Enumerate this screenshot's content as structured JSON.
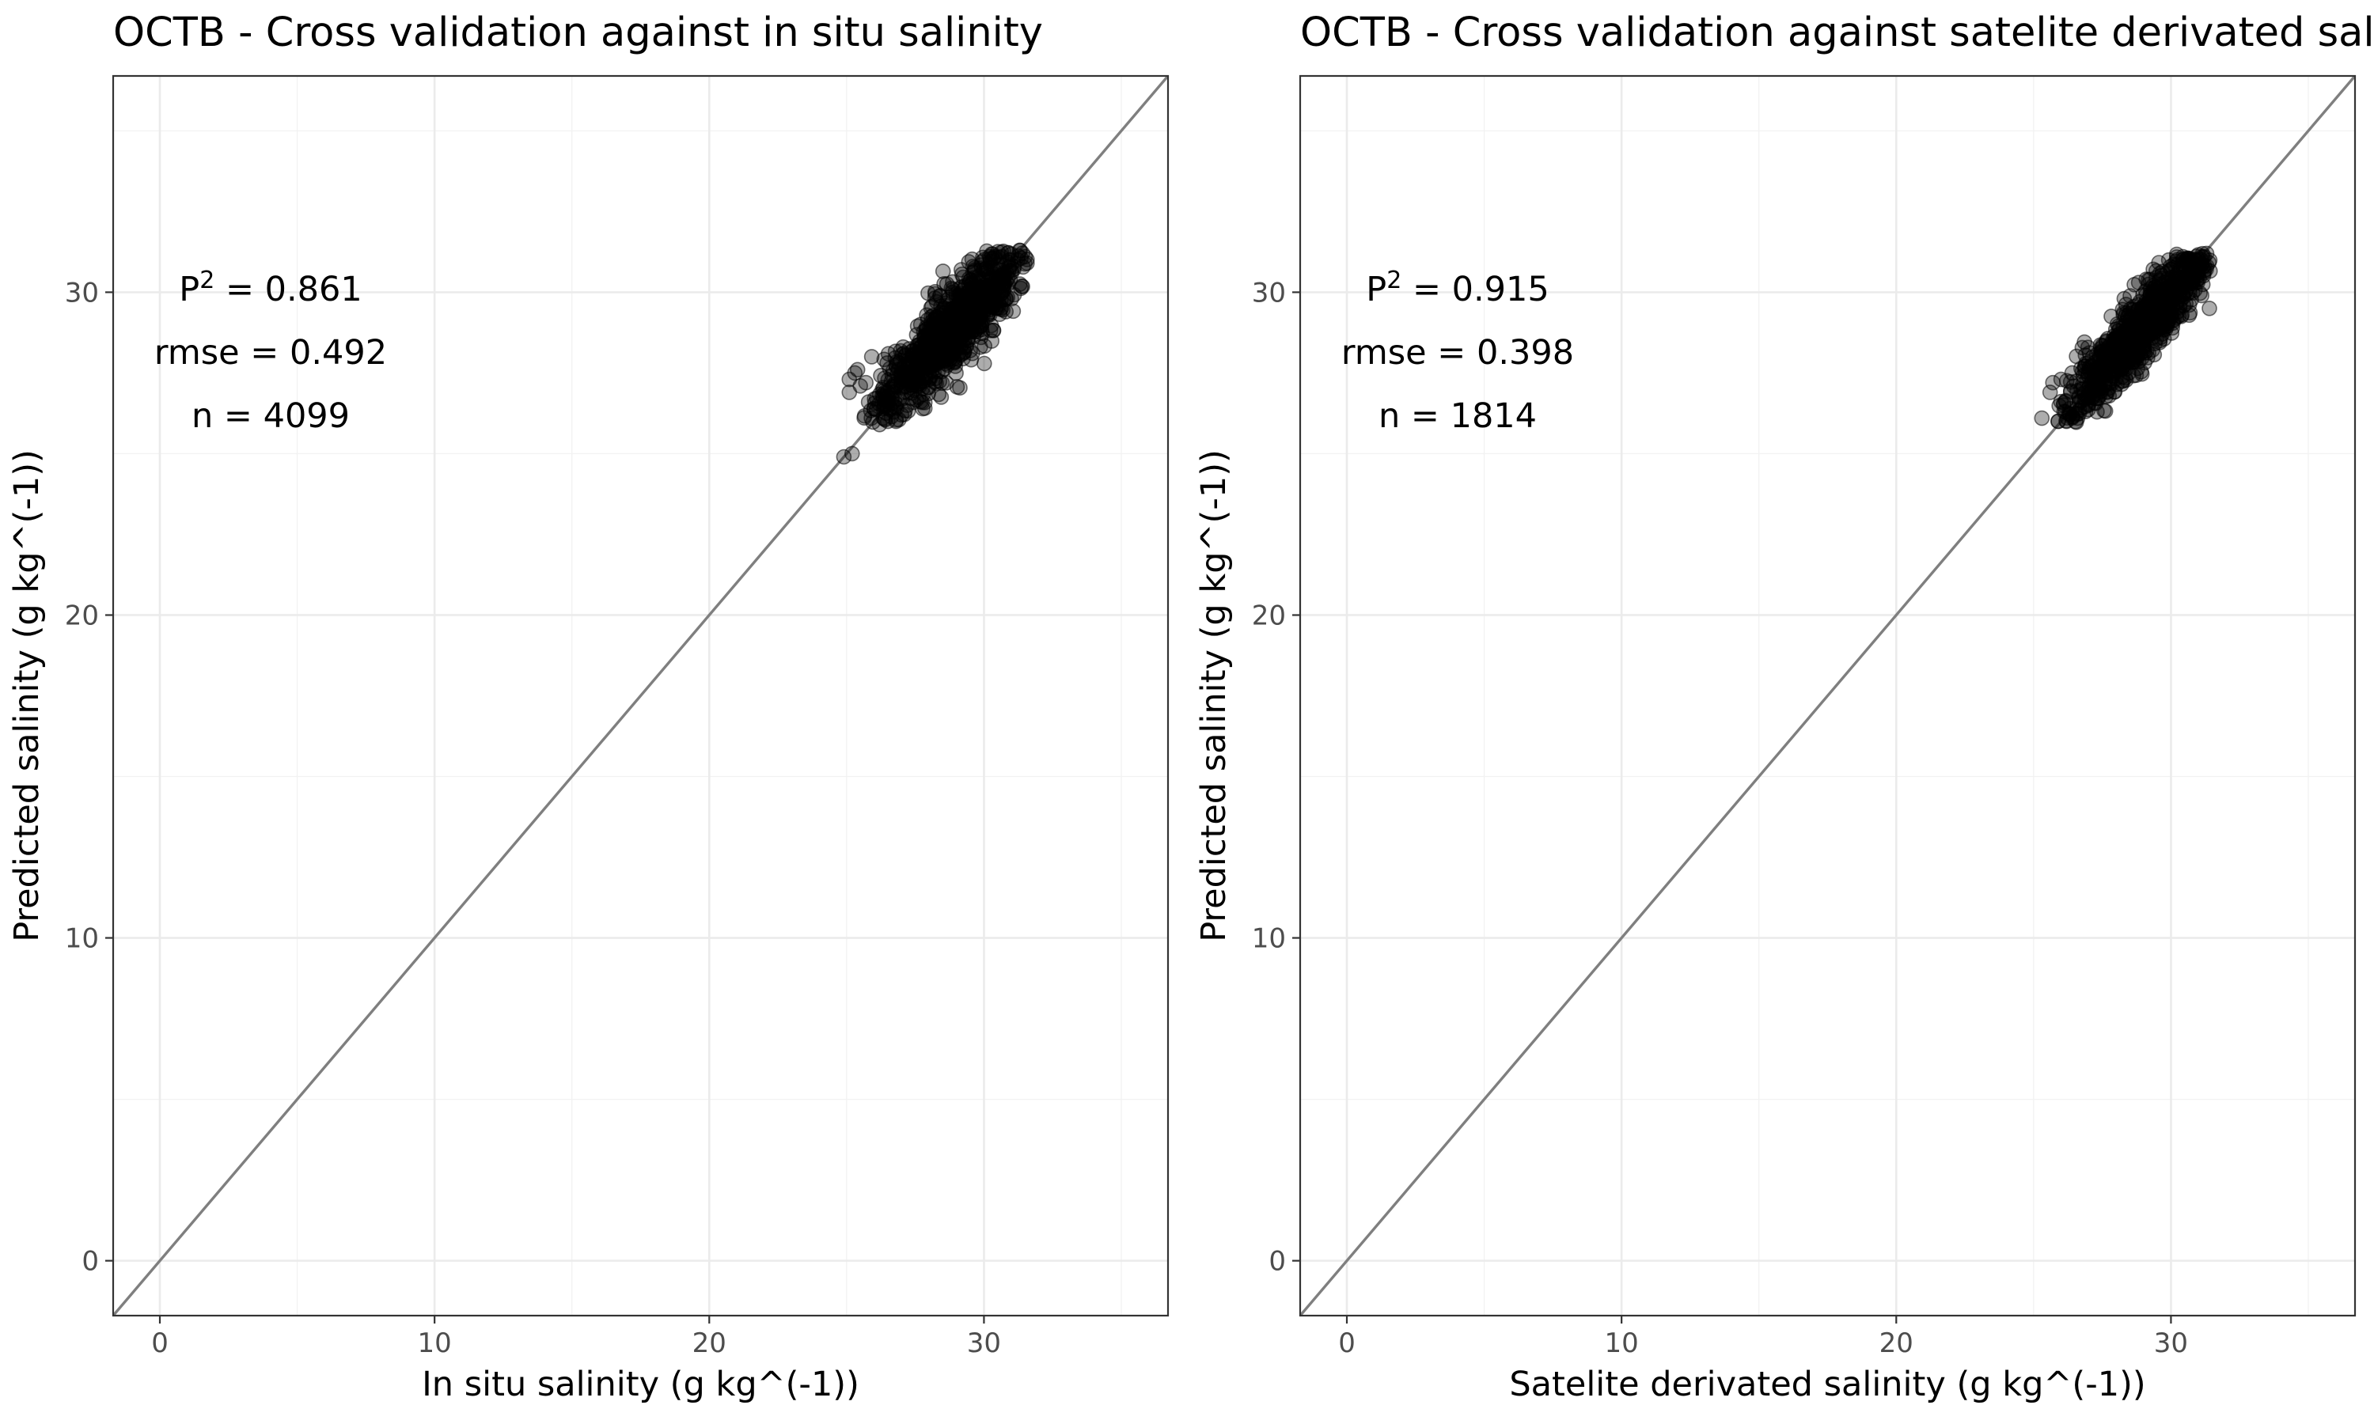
{
  "chart_data": [
    {
      "type": "scatter",
      "title": "OCTB - Cross validation against in situ salinity",
      "xlabel": "In situ salinity  (g kg^(-1))",
      "ylabel": "Predicted salinity (g kg^(-1))",
      "xlim": [
        -1.7,
        36.7
      ],
      "ylim": [
        -1.7,
        36.7
      ],
      "x_ticks": [
        0,
        10,
        20,
        30
      ],
      "y_ticks": [
        0,
        10,
        20,
        30
      ],
      "grid": true,
      "reference_line": "y = x",
      "stats": {
        "r2": 0.861,
        "rmse": 0.492,
        "n": 4099
      },
      "stat_labels": {
        "r2_prefix": "P",
        "r2_superscript": "2",
        "r2_text": " = 0.861",
        "rmse_text": "rmse = 0.492",
        "n_text": "n = 4099"
      },
      "cloud": {
        "center": [
          28.9,
          28.9
        ],
        "x_range": [
          25.6,
          31.6
        ],
        "y_range": [
          25.9,
          31.3
        ],
        "spread_along": 1.1,
        "spread_across": 0.35
      },
      "points": [
        [
          24.9,
          24.9
        ],
        [
          25.2,
          25.0
        ],
        [
          25.1,
          27.3
        ],
        [
          25.3,
          27.5
        ],
        [
          25.1,
          26.9
        ],
        [
          25.5,
          27.1
        ],
        [
          25.4,
          27.6
        ],
        [
          25.7,
          27.2
        ],
        [
          25.8,
          26.6
        ],
        [
          25.9,
          26.1
        ],
        [
          26.0,
          26.4
        ],
        [
          26.2,
          25.9
        ],
        [
          26.5,
          26.0
        ],
        [
          26.8,
          26.0
        ],
        [
          27.0,
          26.2
        ],
        [
          26.3,
          26.8
        ],
        [
          26.6,
          27.0
        ],
        [
          27.1,
          27.3
        ],
        [
          27.4,
          27.2
        ],
        [
          27.6,
          28.0
        ],
        [
          27.9,
          28.3
        ],
        [
          28.1,
          27.8
        ],
        [
          28.3,
          28.7
        ],
        [
          28.6,
          29.2
        ],
        [
          28.8,
          28.5
        ],
        [
          29.0,
          29.4
        ],
        [
          29.2,
          28.8
        ],
        [
          29.4,
          29.6
        ],
        [
          29.7,
          30.1
        ],
        [
          29.9,
          29.5
        ],
        [
          30.1,
          30.4
        ],
        [
          30.3,
          29.9
        ],
        [
          30.5,
          30.7
        ],
        [
          30.7,
          30.3
        ],
        [
          30.9,
          31.0
        ],
        [
          31.1,
          30.8
        ],
        [
          31.3,
          31.3
        ],
        [
          31.5,
          31.1
        ],
        [
          29.6,
          30.8
        ],
        [
          28.4,
          29.9
        ],
        [
          27.7,
          29.0
        ],
        [
          30.2,
          31.1
        ],
        [
          30.8,
          29.4
        ],
        [
          29.5,
          28.2
        ],
        [
          31.0,
          29.8
        ]
      ]
    },
    {
      "type": "scatter",
      "title": "OCTB - Cross validation against satelite derivated sali",
      "xlabel": "Satelite derivated salinity (g kg^(-1))",
      "ylabel": "Predicted salinity (g kg^(-1))",
      "xlim": [
        -1.7,
        36.7
      ],
      "ylim": [
        -1.7,
        36.7
      ],
      "x_ticks": [
        0,
        10,
        20,
        30
      ],
      "y_ticks": [
        0,
        10,
        20,
        30
      ],
      "grid": true,
      "reference_line": "y = x",
      "stats": {
        "r2": 0.915,
        "rmse": 0.398,
        "n": 1814
      },
      "stat_labels": {
        "r2_prefix": "P",
        "r2_superscript": "2",
        "r2_text": " = 0.915",
        "rmse_text": "rmse = 0.398",
        "n_text": "n = 1814"
      },
      "cloud": {
        "center": [
          28.8,
          28.8
        ],
        "x_range": [
          25.8,
          31.5
        ],
        "y_range": [
          25.9,
          31.2
        ],
        "spread_along": 1.0,
        "spread_across": 0.28
      },
      "points": [
        [
          25.3,
          26.1
        ],
        [
          25.6,
          26.9
        ],
        [
          25.7,
          27.2
        ],
        [
          26.0,
          27.3
        ],
        [
          26.4,
          27.5
        ],
        [
          25.9,
          26.0
        ],
        [
          26.2,
          26.0
        ],
        [
          26.6,
          26.1
        ],
        [
          27.0,
          26.5
        ],
        [
          26.8,
          27.0
        ],
        [
          27.3,
          27.6
        ],
        [
          27.6,
          27.4
        ],
        [
          27.9,
          28.0
        ],
        [
          28.1,
          28.6
        ],
        [
          28.4,
          28.2
        ],
        [
          28.6,
          29.0
        ],
        [
          28.9,
          28.7
        ],
        [
          29.1,
          29.5
        ],
        [
          29.3,
          29.0
        ],
        [
          29.6,
          29.8
        ],
        [
          29.8,
          29.4
        ],
        [
          30.0,
          30.2
        ],
        [
          30.3,
          30.0
        ],
        [
          30.5,
          30.6
        ],
        [
          30.8,
          30.4
        ],
        [
          31.0,
          31.0
        ],
        [
          31.3,
          31.2
        ],
        [
          31.2,
          30.6
        ],
        [
          29.1,
          30.4
        ],
        [
          28.3,
          29.8
        ],
        [
          30.0,
          30.7
        ],
        [
          30.4,
          29.3
        ],
        [
          31.4,
          29.5
        ],
        [
          29.6,
          28.5
        ],
        [
          28.5,
          27.9
        ]
      ]
    }
  ]
}
